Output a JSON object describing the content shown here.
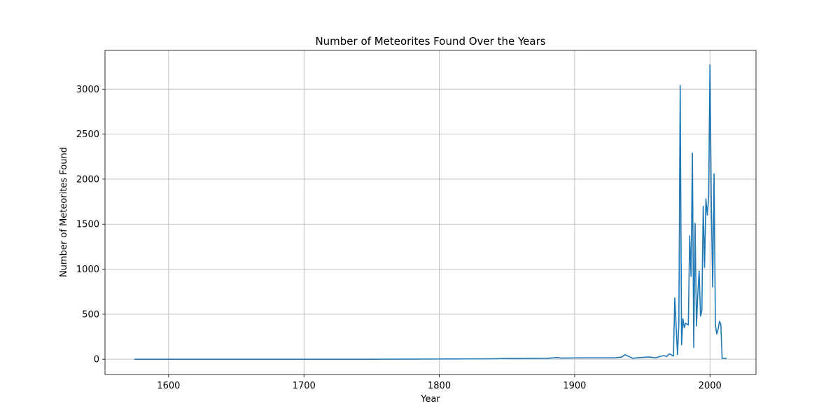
{
  "chart_data": {
    "type": "line",
    "title": "Number of Meteorites Found Over the Years",
    "xlabel": "Year",
    "ylabel": "Number of Meteorites Found",
    "xlim": [
      1553,
      2034
    ],
    "ylim": [
      -170,
      3430
    ],
    "x_ticks": [
      1600,
      1700,
      1800,
      1900,
      2000
    ],
    "y_ticks": [
      0,
      500,
      1000,
      1500,
      2000,
      2500,
      3000
    ],
    "grid": true,
    "colors": {
      "series": "#1f77b4"
    },
    "series": [
      {
        "x": [
          1575,
          1600,
          1650,
          1700,
          1750,
          1800,
          1820,
          1840,
          1850,
          1860,
          1870,
          1880,
          1887,
          1890,
          1900,
          1910,
          1920,
          1930,
          1935,
          1937,
          1940,
          1943,
          1946,
          1950,
          1955,
          1960,
          1963,
          1966,
          1968,
          1970,
          1973,
          1974,
          1976,
          1977,
          1978,
          1979,
          1980,
          1981,
          1982,
          1984,
          1985,
          1986,
          1987,
          1988,
          1989,
          1990,
          1991,
          1992,
          1993,
          1994,
          1995,
          1996,
          1997,
          1998,
          1999,
          2000,
          2001,
          2002,
          2003,
          2004,
          2005,
          2006,
          2007,
          2008,
          2009,
          2010,
          2011,
          2012
        ],
        "values": [
          0,
          0,
          0,
          0,
          0,
          2,
          3,
          5,
          8,
          8,
          9,
          10,
          18,
          12,
          14,
          15,
          15,
          15,
          25,
          50,
          30,
          10,
          15,
          20,
          25,
          15,
          30,
          40,
          30,
          60,
          35,
          680,
          50,
          400,
          3040,
          160,
          450,
          350,
          400,
          380,
          1370,
          920,
          2290,
          130,
          1510,
          370,
          720,
          980,
          480,
          540,
          1700,
          1020,
          1780,
          1600,
          1790,
          3270,
          1700,
          800,
          2060,
          380,
          280,
          330,
          420,
          390,
          10,
          10,
          10,
          10
        ]
      }
    ]
  }
}
